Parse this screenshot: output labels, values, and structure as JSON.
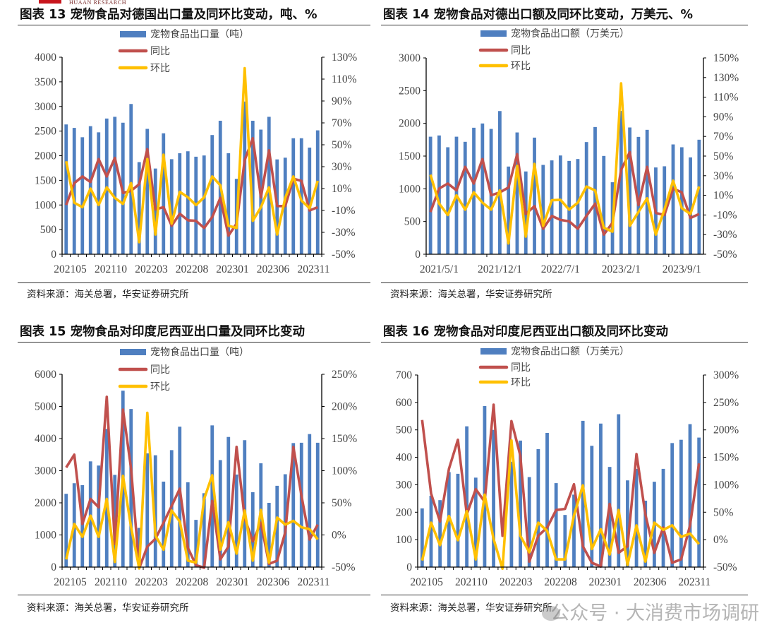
{
  "header": {
    "logo_text": "HUAAN RESEARCH"
  },
  "colors": {
    "bar": "#4f7fc0",
    "yoy": "#c0504d",
    "mom": "#ffc000"
  },
  "watermark": "公众号 · 大消费市场调研",
  "chart_data": [
    {
      "id": "c13",
      "type": "bar+line",
      "title": "图表 13 宠物食品对德国出口量及同环比变动，吨、%",
      "source": "资料来源：海关总署，华安证券研究所",
      "legend": [
        "宠物食品出口量（吨）",
        "同比",
        "环比"
      ],
      "categories": [
        "202105",
        "202106",
        "202107",
        "202108",
        "202109",
        "202110",
        "202111",
        "202112",
        "202201",
        "202202",
        "202203",
        "202204",
        "202205",
        "202206",
        "202207",
        "202208",
        "202209",
        "202210",
        "202211",
        "202212",
        "202301",
        "202302",
        "202303",
        "202304",
        "202305",
        "202306",
        "202307",
        "202308",
        "202309",
        "202310",
        "202311",
        "202312"
      ],
      "xticks": [
        {
          "i": 0,
          "label": "202105"
        },
        {
          "i": 5,
          "label": "202110"
        },
        {
          "i": 10,
          "label": "202203"
        },
        {
          "i": 15,
          "label": "202208"
        },
        {
          "i": 20,
          "label": "202301"
        },
        {
          "i": 25,
          "label": "202306"
        },
        {
          "i": 30,
          "label": "202311"
        }
      ],
      "left_axis": {
        "min": 0,
        "max": 4000,
        "ticks": [
          "0",
          "500",
          "1000",
          "1500",
          "2000",
          "2500",
          "3000",
          "3500",
          "4000"
        ]
      },
      "right_axis": {
        "min": -50,
        "max": 130,
        "ticks": [
          "-50%",
          "-30%",
          "-10%",
          "10%",
          "30%",
          "50%",
          "70%",
          "90%",
          "110%",
          "130%"
        ]
      },
      "bars": [
        2635,
        2565,
        2375,
        2600,
        2475,
        2755,
        2790,
        2670,
        3050,
        1870,
        2545,
        1740,
        2455,
        1930,
        2050,
        2090,
        1980,
        2005,
        2420,
        2710,
        2050,
        1530,
        3100,
        2710,
        2530,
        2790,
        1925,
        1960,
        2355,
        2355,
        2165,
        2515
      ],
      "yoy": [
        -5,
        15,
        21,
        16,
        37,
        21,
        38,
        6,
        8,
        14,
        46,
        -9,
        -7,
        -24,
        -13,
        -19,
        -19.5,
        -26,
        -16,
        1.5,
        -33,
        -22,
        36,
        56,
        2,
        45,
        -6,
        -6,
        19,
        17,
        -10,
        -7
      ],
      "mom": [
        35,
        -3,
        -7,
        10,
        -5,
        11,
        1.5,
        -4,
        15,
        -39,
        37,
        -32,
        41,
        -22,
        7,
        2,
        -5,
        2,
        21,
        13,
        -24,
        -26,
        120,
        -19.5,
        -7,
        11,
        -32,
        1.5,
        21,
        -1,
        -8,
        17
      ]
    },
    {
      "id": "c14",
      "type": "bar+line",
      "title": "图表 14 宠物食品对德出口额及同环比变动，万美元、%",
      "source": "资料来源：海关总署，华安证券研究所",
      "legend": [
        "宠物食品出口额（万美元）",
        "同比",
        "环比"
      ],
      "categories": [
        "2021/5/1",
        "2021/6/1",
        "2021/7/1",
        "2021/8/1",
        "2021/9/1",
        "2021/10/1",
        "2021/11/1",
        "2021/12/1",
        "2022/1/1",
        "2022/2/1",
        "2022/3/1",
        "2022/4/1",
        "2022/5/1",
        "2022/6/1",
        "2022/7/1",
        "2022/8/1",
        "2022/9/1",
        "2022/10/1",
        "2022/11/1",
        "2022/12/1",
        "2023/1/1",
        "2023/2/1",
        "2023/3/1",
        "2023/4/1",
        "2023/5/1",
        "2023/6/1",
        "2023/7/1",
        "2023/8/1",
        "2023/9/1",
        "2023/10/1",
        "2023/11/1",
        "2023/12/1"
      ],
      "xticks": [
        {
          "i": 0,
          "label": "2021/5/1"
        },
        {
          "i": 7,
          "label": "2021/12/1"
        },
        {
          "i": 14,
          "label": "2022/7/1"
        },
        {
          "i": 21,
          "label": "2023/2/1"
        },
        {
          "i": 28,
          "label": "2023/9/1"
        }
      ],
      "left_axis": {
        "min": 0,
        "max": 3000,
        "ticks": [
          "0",
          "500",
          "1000",
          "1500",
          "2000",
          "2500",
          "3000"
        ]
      },
      "right_axis": {
        "min": -50,
        "max": 150,
        "ticks": [
          "-50%",
          "-30%",
          "-10%",
          "10%",
          "30%",
          "50%",
          "70%",
          "90%",
          "110%",
          "130%",
          "150%"
        ]
      },
      "bars": [
        1796,
        1815,
        1635,
        1796,
        1718,
        1933,
        1998,
        1915,
        2188,
        1340,
        1861,
        1265,
        1782,
        1365,
        1434,
        1509,
        1426,
        1455,
        1714,
        1944,
        1502,
        1100,
        2190,
        1937,
        1793,
        1901,
        1326,
        1344,
        1678,
        1635,
        1480,
        1750
      ],
      "yoy": [
        -7,
        17,
        22,
        15,
        39,
        22,
        47,
        10,
        13,
        18,
        52,
        -9,
        -1,
        -24,
        -11,
        -15,
        -16.5,
        -24,
        -11,
        1.5,
        -30,
        -18,
        36,
        54,
        0,
        39,
        -8,
        -10,
        17,
        13,
        -13,
        -9
      ],
      "mom": [
        31,
        1.5,
        -10,
        10,
        -4.5,
        13,
        2.5,
        -4.5,
        15,
        -39,
        40,
        -32,
        42,
        -21,
        5,
        5.5,
        -4.5,
        2.5,
        19,
        15,
        -23,
        -27,
        124,
        -21,
        -7,
        7,
        -30,
        -4.5,
        25,
        -3,
        -9,
        19
      ]
    },
    {
      "id": "c15",
      "type": "bar+line",
      "title": "图表 15 宠物食品对印度尼西亚出口量及同环比变动",
      "source": "资料来源：海关总署，华安证券研究所",
      "legend": [
        "宠物食品出口量（吨）",
        "同比",
        "环比"
      ],
      "categories": [
        "202105",
        "202106",
        "202107",
        "202108",
        "202109",
        "202110",
        "202111",
        "202112",
        "202201",
        "202202",
        "202203",
        "202204",
        "202205",
        "202206",
        "202207",
        "202208",
        "202209",
        "202210",
        "202211",
        "202212",
        "202301",
        "202302",
        "202303",
        "202304",
        "202305",
        "202306",
        "202307",
        "202308",
        "202309",
        "202310",
        "202311",
        "202312"
      ],
      "xticks": [
        {
          "i": 0,
          "label": "202105"
        },
        {
          "i": 5,
          "label": "202110"
        },
        {
          "i": 10,
          "label": "202203"
        },
        {
          "i": 15,
          "label": "202208"
        },
        {
          "i": 20,
          "label": "202301"
        },
        {
          "i": 25,
          "label": "202306"
        },
        {
          "i": 30,
          "label": "202311"
        }
      ],
      "left_axis": {
        "min": 0,
        "max": 6000,
        "ticks": [
          "0",
          "1000",
          "2000",
          "3000",
          "4000",
          "5000",
          "6000"
        ]
      },
      "right_axis": {
        "min": -50,
        "max": 250,
        "ticks": [
          "-50%",
          "0%",
          "50%",
          "100%",
          "150%",
          "200%",
          "250%"
        ]
      },
      "bars": [
        2280,
        2610,
        2550,
        3290,
        3160,
        4300,
        2870,
        5490,
        4920,
        1220,
        3540,
        3480,
        2660,
        3640,
        4370,
        2640,
        1470,
        2300,
        4410,
        3330,
        4050,
        2880,
        3950,
        2330,
        3230,
        2000,
        2530,
        2890,
        3860,
        3870,
        4140,
        3870
      ],
      "yoy": [
        105,
        125,
        17,
        56,
        43,
        215,
        -14,
        195,
        103,
        -52,
        -18,
        -6,
        19,
        45,
        72,
        -20,
        -47,
        -51,
        53,
        -38,
        -18,
        137,
        26,
        -10,
        19,
        -45,
        -40,
        4,
        137,
        61,
        -7,
        16
      ],
      "mom": [
        -38,
        17,
        -3,
        30,
        -3,
        56,
        -42,
        92,
        12,
        -52,
        190,
        -1,
        -23,
        38,
        21,
        -40,
        -43,
        56,
        93,
        -23,
        20,
        -29,
        38,
        -40,
        39,
        -43,
        27,
        16,
        22,
        12,
        9,
        -7
      ]
    },
    {
      "id": "c16",
      "type": "bar+line",
      "title": "图表 16 宠物食品对印度尼西亚出口额及同环比变动",
      "source": "资料来源：海关总署，华安证券研究所",
      "legend": [
        "宠物食品出口额（万美元）",
        "同比",
        "环比"
      ],
      "categories": [
        "202105",
        "202106",
        "202107",
        "202108",
        "202109",
        "202110",
        "202111",
        "202112",
        "202201",
        "202202",
        "202203",
        "202204",
        "202205",
        "202206",
        "202207",
        "202208",
        "202209",
        "202210",
        "202211",
        "202212",
        "202301",
        "202302",
        "202303",
        "202304",
        "202305",
        "202306",
        "202307",
        "202308",
        "202309",
        "202310",
        "202311",
        "202312"
      ],
      "xticks": [
        {
          "i": 0,
          "label": "202105"
        },
        {
          "i": 5,
          "label": "202110"
        },
        {
          "i": 10,
          "label": "202203"
        },
        {
          "i": 15,
          "label": "202208"
        },
        {
          "i": 20,
          "label": "202301"
        },
        {
          "i": 25,
          "label": "202306"
        },
        {
          "i": 30,
          "label": "202311"
        }
      ],
      "left_axis": {
        "min": 0,
        "max": 700,
        "ticks": [
          "0",
          "100",
          "200",
          "300",
          "400",
          "500",
          "600",
          "700"
        ]
      },
      "right_axis": {
        "min": -50,
        "max": 300,
        "ticks": [
          "-50%",
          "0%",
          "50%",
          "100%",
          "150%",
          "200%",
          "250%",
          "300%"
        ]
      },
      "bars": [
        214,
        260,
        244,
        346,
        340,
        513,
        326,
        587,
        500,
        20,
        384,
        461,
        328,
        430,
        489,
        306,
        190,
        264,
        533,
        442,
        523,
        365,
        557,
        316,
        358,
        242,
        311,
        358,
        452,
        464,
        521,
        472
      ],
      "yoy": [
        218,
        84,
        33,
        129,
        182,
        46,
        92,
        69,
        246,
        7,
        216,
        153,
        -40,
        7,
        22,
        54,
        56,
        101,
        -12,
        -42,
        -49,
        65,
        -24,
        -12,
        156,
        46,
        -24,
        22,
        -42,
        -36,
        26,
        139
      ],
      "mom": [
        -38,
        31,
        -10,
        43,
        -1,
        52,
        -36,
        82,
        1,
        -53,
        181,
        7,
        -23,
        31,
        16,
        -36,
        -36,
        44,
        99,
        -17,
        19,
        -27,
        54,
        -46,
        26,
        -40,
        31,
        18,
        26,
        5,
        11,
        -8
      ]
    }
  ]
}
